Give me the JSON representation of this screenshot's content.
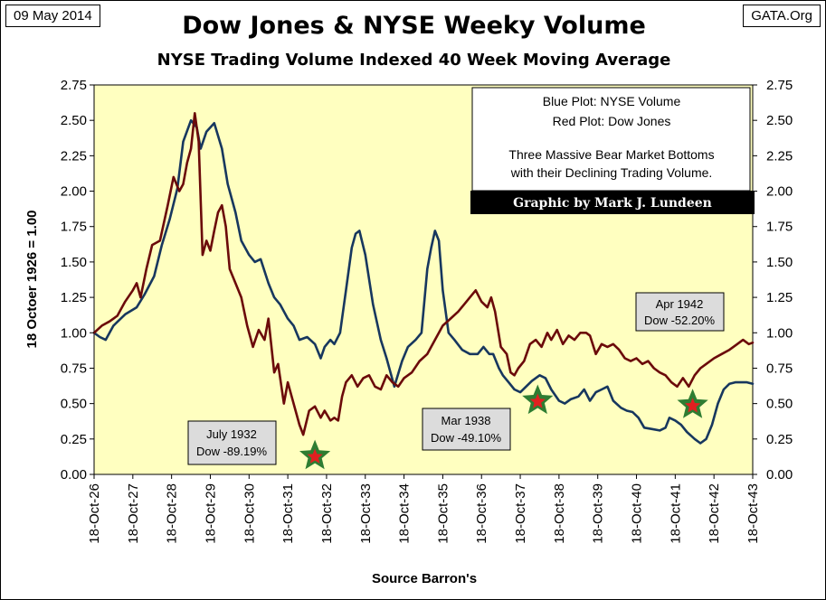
{
  "header": {
    "date": "09 May 2014",
    "source_site": "GATA.Org",
    "title": "Dow Jones & NYSE Weeky Volume",
    "subtitle": "NYSE Trading Volume Indexed 40 Week Moving Average"
  },
  "legend_box": {
    "line1": "Blue Plot: NYSE Volume",
    "line2": "Red Plot: Dow Jones",
    "line3": "Three Massive Bear Market Bottoms",
    "line4": "with their Declining Trading Volume.",
    "credit": "Graphic by Mark J. Lundeen"
  },
  "callouts": [
    {
      "line1": "July 1932",
      "line2": "Dow -89.19%"
    },
    {
      "line1": "Mar 1938",
      "line2": "Dow -49.10%"
    },
    {
      "line1": "Apr 1942",
      "line2": "Dow -52.20%"
    }
  ],
  "chart_data": {
    "type": "line",
    "title": "Dow Jones & NYSE Weeky Volume",
    "subtitle": "NYSE Trading Volume Indexed 40 Week Moving Average",
    "ylabel": "18 Octoer 1926 = 1.00",
    "xlabel": "Source Barron's",
    "ylim": [
      0,
      2.75
    ],
    "xlim": [
      1926.8,
      1943.8
    ],
    "yticks": [
      "0.00",
      "0.25",
      "0.50",
      "0.75",
      "1.00",
      "1.25",
      "1.50",
      "1.75",
      "2.00",
      "2.25",
      "2.50",
      "2.75"
    ],
    "xticks": [
      "18-Oct-26",
      "18-Oct-27",
      "18-Oct-28",
      "18-Oct-29",
      "18-Oct-30",
      "18-Oct-31",
      "18-Oct-32",
      "18-Oct-33",
      "18-Oct-34",
      "18-Oct-35",
      "18-Oct-36",
      "18-Oct-37",
      "18-Oct-38",
      "18-Oct-39",
      "18-Oct-40",
      "18-Oct-41",
      "18-Oct-42",
      "18-Oct-43"
    ],
    "background": "#ffffc0",
    "grid": false,
    "series": [
      {
        "label_text": "Blue Plot: NYSE Volume",
        "color": "#17375e",
        "x": [
          1926.8,
          1926.95,
          1927.1,
          1927.3,
          1927.6,
          1927.9,
          1928.1,
          1928.35,
          1928.55,
          1928.75,
          1928.95,
          1929.1,
          1929.3,
          1929.45,
          1929.55,
          1929.7,
          1929.9,
          1930.1,
          1930.25,
          1930.45,
          1930.6,
          1930.8,
          1930.95,
          1931.1,
          1931.3,
          1931.45,
          1931.6,
          1931.8,
          1931.95,
          1932.1,
          1932.3,
          1932.5,
          1932.65,
          1932.75,
          1932.9,
          1933.0,
          1933.15,
          1933.3,
          1933.45,
          1933.55,
          1933.65,
          1933.8,
          1934.0,
          1934.2,
          1934.35,
          1934.45,
          1934.55,
          1934.75,
          1934.9,
          1935.1,
          1935.25,
          1935.4,
          1935.5,
          1935.6,
          1935.7,
          1935.8,
          1935.95,
          1936.1,
          1936.3,
          1936.5,
          1936.7,
          1936.85,
          1937.0,
          1937.1,
          1937.25,
          1937.35,
          1937.5,
          1937.65,
          1937.8,
          1937.95,
          1938.1,
          1938.3,
          1938.45,
          1938.6,
          1938.8,
          1938.95,
          1939.1,
          1939.3,
          1939.45,
          1939.6,
          1939.75,
          1939.9,
          1940.05,
          1940.2,
          1940.4,
          1940.55,
          1940.7,
          1940.85,
          1941.0,
          1941.2,
          1941.4,
          1941.55,
          1941.65,
          1941.8,
          1941.95,
          1942.1,
          1942.3,
          1942.45,
          1942.6,
          1942.75,
          1942.9,
          1943.05,
          1943.2,
          1943.35,
          1943.5,
          1943.65,
          1943.8
        ],
        "y": [
          1.0,
          0.97,
          0.95,
          1.05,
          1.13,
          1.18,
          1.27,
          1.4,
          1.62,
          1.8,
          2.02,
          2.35,
          2.5,
          2.45,
          2.3,
          2.42,
          2.48,
          2.3,
          2.05,
          1.85,
          1.65,
          1.55,
          1.5,
          1.52,
          1.35,
          1.25,
          1.2,
          1.1,
          1.05,
          0.95,
          0.97,
          0.92,
          0.82,
          0.9,
          0.95,
          0.92,
          1.0,
          1.3,
          1.6,
          1.7,
          1.72,
          1.55,
          1.2,
          0.95,
          0.82,
          0.72,
          0.62,
          0.8,
          0.9,
          0.95,
          1.0,
          1.45,
          1.6,
          1.72,
          1.65,
          1.3,
          1.0,
          0.95,
          0.88,
          0.85,
          0.85,
          0.9,
          0.85,
          0.85,
          0.75,
          0.7,
          0.65,
          0.6,
          0.58,
          0.62,
          0.66,
          0.7,
          0.68,
          0.6,
          0.52,
          0.5,
          0.53,
          0.55,
          0.6,
          0.52,
          0.58,
          0.6,
          0.62,
          0.52,
          0.47,
          0.45,
          0.44,
          0.4,
          0.33,
          0.32,
          0.31,
          0.33,
          0.4,
          0.38,
          0.35,
          0.3,
          0.25,
          0.22,
          0.25,
          0.35,
          0.5,
          0.6,
          0.64,
          0.65,
          0.65,
          0.65,
          0.64
        ]
      },
      {
        "label_text": "Red Plot: Dow Jones",
        "color": "#6b0a0a",
        "x": [
          1926.8,
          1927.0,
          1927.2,
          1927.4,
          1927.6,
          1927.8,
          1927.9,
          1928.0,
          1928.15,
          1928.3,
          1928.5,
          1928.7,
          1928.85,
          1929.0,
          1929.1,
          1929.2,
          1929.3,
          1929.4,
          1929.5,
          1929.6,
          1929.7,
          1929.8,
          1929.9,
          1930.0,
          1930.1,
          1930.2,
          1930.3,
          1930.45,
          1930.6,
          1930.75,
          1930.9,
          1931.05,
          1931.2,
          1931.3,
          1931.45,
          1931.55,
          1931.7,
          1931.8,
          1931.9,
          1932.0,
          1932.1,
          1932.2,
          1932.35,
          1932.5,
          1932.65,
          1932.75,
          1932.9,
          1933.0,
          1933.1,
          1933.2,
          1933.3,
          1933.45,
          1933.6,
          1933.75,
          1933.9,
          1934.05,
          1934.2,
          1934.35,
          1934.5,
          1934.65,
          1934.8,
          1935.0,
          1935.2,
          1935.4,
          1935.6,
          1935.8,
          1936.0,
          1936.2,
          1936.35,
          1936.5,
          1936.65,
          1936.8,
          1936.95,
          1937.05,
          1937.15,
          1937.3,
          1937.45,
          1937.55,
          1937.65,
          1937.75,
          1937.9,
          1938.05,
          1938.2,
          1938.35,
          1938.5,
          1938.6,
          1938.75,
          1938.9,
          1939.05,
          1939.2,
          1939.35,
          1939.5,
          1939.6,
          1939.75,
          1939.9,
          1940.05,
          1940.2,
          1940.35,
          1940.5,
          1940.65,
          1940.8,
          1940.95,
          1941.1,
          1941.25,
          1941.4,
          1941.55,
          1941.7,
          1941.85,
          1942.0,
          1942.15,
          1942.3,
          1942.45,
          1942.6,
          1942.8,
          1943.0,
          1943.2,
          1943.4,
          1943.55,
          1943.7,
          1943.8
        ],
        "y": [
          1.0,
          1.05,
          1.08,
          1.12,
          1.22,
          1.3,
          1.35,
          1.25,
          1.45,
          1.62,
          1.65,
          1.9,
          2.1,
          2.0,
          2.05,
          2.2,
          2.3,
          2.55,
          2.35,
          1.55,
          1.65,
          1.58,
          1.72,
          1.85,
          1.9,
          1.75,
          1.45,
          1.35,
          1.25,
          1.05,
          0.9,
          1.02,
          0.95,
          1.1,
          0.72,
          0.78,
          0.5,
          0.65,
          0.55,
          0.45,
          0.35,
          0.28,
          0.45,
          0.48,
          0.4,
          0.45,
          0.38,
          0.4,
          0.38,
          0.55,
          0.65,
          0.7,
          0.62,
          0.68,
          0.7,
          0.62,
          0.6,
          0.7,
          0.65,
          0.62,
          0.68,
          0.72,
          0.8,
          0.85,
          0.95,
          1.05,
          1.1,
          1.15,
          1.2,
          1.25,
          1.3,
          1.22,
          1.18,
          1.25,
          1.15,
          0.9,
          0.85,
          0.72,
          0.7,
          0.75,
          0.8,
          0.92,
          0.95,
          0.9,
          1.0,
          0.95,
          1.02,
          0.92,
          0.98,
          0.95,
          1.0,
          1.0,
          0.98,
          0.85,
          0.92,
          0.9,
          0.92,
          0.88,
          0.82,
          0.8,
          0.82,
          0.78,
          0.8,
          0.75,
          0.72,
          0.7,
          0.65,
          0.62,
          0.68,
          0.62,
          0.7,
          0.75,
          0.78,
          0.82,
          0.85,
          0.88,
          0.92,
          0.95,
          0.92,
          0.93
        ]
      }
    ],
    "markers": [
      {
        "type": "star",
        "x": 1932.5,
        "y": 0.13,
        "fill": "#e02020",
        "outline": "#2e7d32"
      },
      {
        "type": "star",
        "x": 1938.25,
        "y": 0.52,
        "fill": "#e02020",
        "outline": "#2e7d32"
      },
      {
        "type": "star",
        "x": 1942.25,
        "y": 0.49,
        "fill": "#e02020",
        "outline": "#2e7d32"
      }
    ]
  }
}
